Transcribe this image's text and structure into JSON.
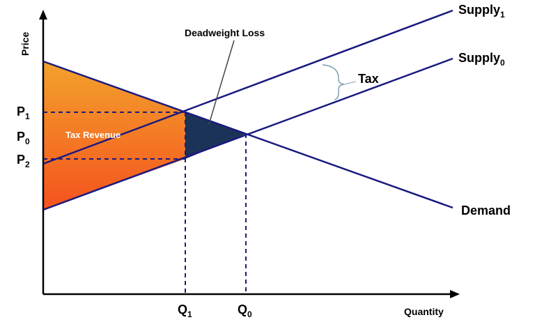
{
  "axes": {
    "y_label": "Price",
    "x_label": "Quantity"
  },
  "curves": {
    "supply1": {
      "base": "Supply",
      "sub": "1"
    },
    "supply0": {
      "base": "Supply",
      "sub": "0"
    },
    "demand": "Demand"
  },
  "annotations": {
    "deadweight_loss": "Deadweight Loss",
    "tax": "Tax",
    "tax_revenue": "Tax Revenue"
  },
  "price_ticks": [
    {
      "base": "P",
      "sub": "1"
    },
    {
      "base": "P",
      "sub": "0"
    },
    {
      "base": "P",
      "sub": "2"
    }
  ],
  "quantity_ticks": [
    {
      "base": "Q",
      "sub": "1"
    },
    {
      "base": "Q",
      "sub": "0"
    }
  ],
  "colors": {
    "curve": "#1a1a80",
    "deadweight": "#1b3358",
    "revenue_top": "#f2a22c",
    "revenue_bottom": "#f5521e",
    "axis": "#000000"
  }
}
